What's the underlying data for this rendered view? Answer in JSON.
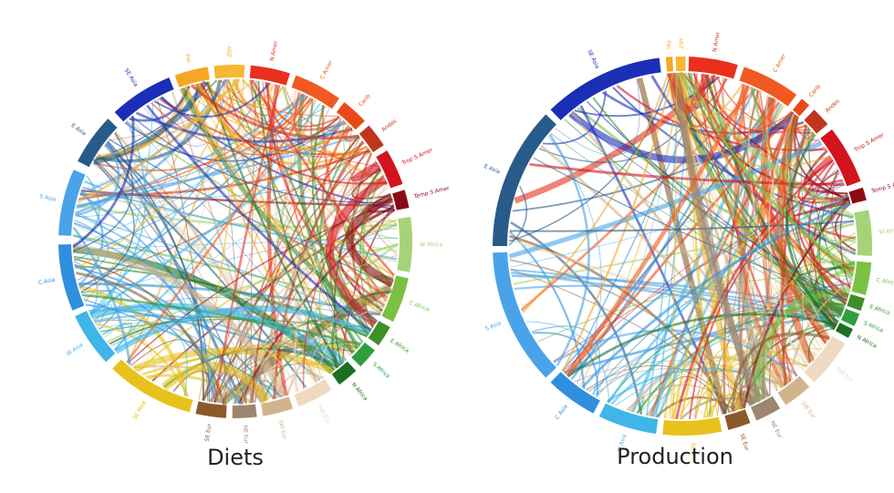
{
  "diagrams": [
    {
      "title": "Diets",
      "regions": [
        "Pac",
        "ANZ",
        "N Amer",
        "C Amer",
        "Carib",
        "Andes",
        "Trop S Amer",
        "Temp S Amer",
        "W Africa",
        "C Africa",
        "E Africa",
        "S Africa",
        "N Africa",
        "NW Eur",
        "SW Eur",
        "NE Eur",
        "SE Eur",
        "SE Med",
        "W Asia",
        "C Asia",
        "S Asia",
        "E Asia",
        "SE Asia"
      ]
    },
    {
      "title": "Production",
      "regions": [
        "Pac",
        "ANZ",
        "N Amer",
        "C Amer",
        "Carib",
        "Andes",
        "Trop S Amer",
        "Temp S Amer",
        "W Africa",
        "C Africa",
        "E Africa",
        "S Africa",
        "N Africa",
        "NW Eur",
        "SW Eur",
        "NE Eur",
        "SE Eur",
        "SE Med",
        "W Asia",
        "C Asia",
        "S Asia",
        "E Asia",
        "SE Asia"
      ]
    }
  ]
}
